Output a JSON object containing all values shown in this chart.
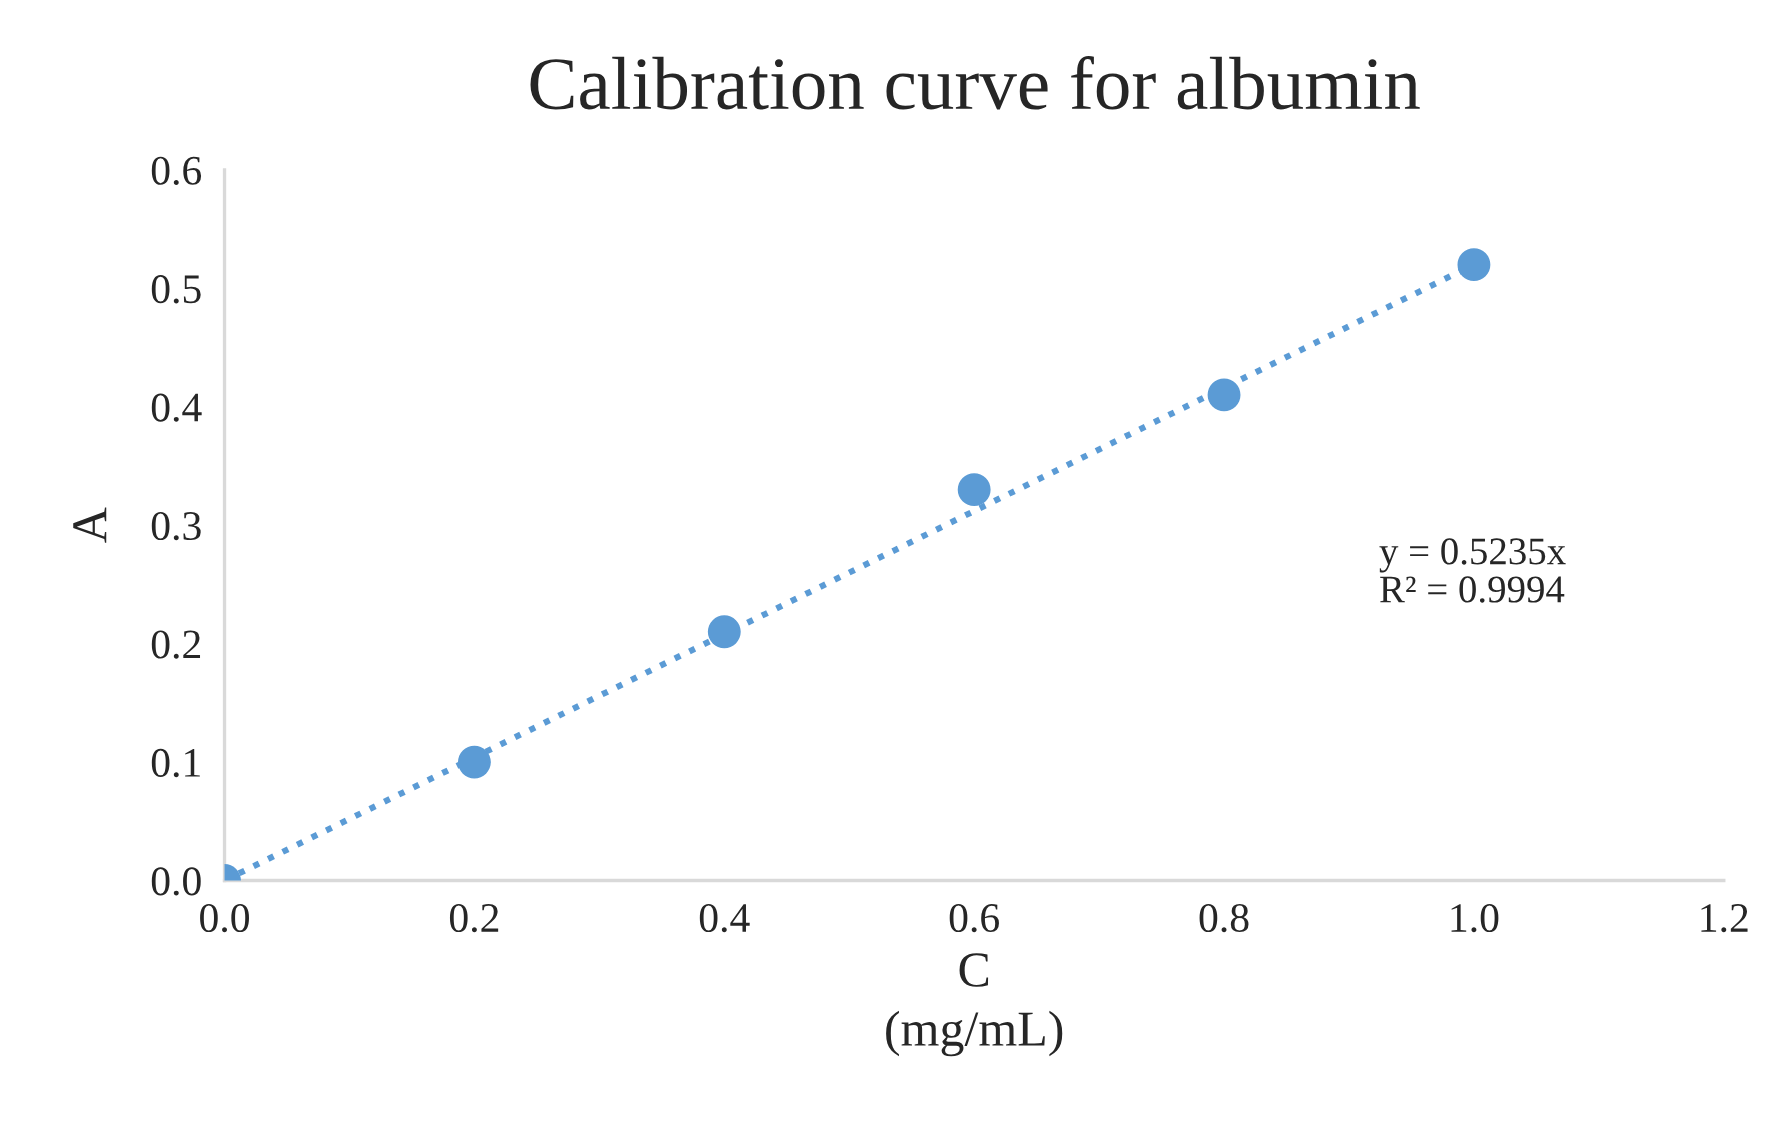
{
  "chart_data": {
    "type": "scatter",
    "title": "Calibration curve for albumin",
    "xlabel": "C\n(mg/mL)",
    "ylabel": "A",
    "x": [
      0.0,
      0.2,
      0.4,
      0.6,
      0.8,
      1.0
    ],
    "series": [
      {
        "color": "#5b9bd5",
        "values": [
          0.0,
          0.1,
          0.21,
          0.33,
          0.41,
          0.52
        ],
        "marker": "circle"
      },
      {
        "type": "line",
        "color": "#5b9bd5",
        "x": [
          0.0,
          1.0
        ],
        "values": [
          0.0,
          0.52
        ],
        "line_style": "dotted",
        "marker": "none"
      }
    ],
    "xlim": [
      0.0,
      1.2
    ],
    "xticks": [
      {
        "value": 0.0,
        "label": "0.0"
      },
      {
        "value": 0.2,
        "label": "0.2"
      },
      {
        "value": 0.4,
        "label": "0.4"
      },
      {
        "value": 0.6,
        "label": "0.6"
      },
      {
        "value": 0.8,
        "label": "0.8"
      },
      {
        "value": 1.0,
        "label": "1.0"
      },
      {
        "value": 1.2,
        "label": "1.2"
      }
    ],
    "ylim": [
      0.0,
      0.6
    ],
    "yticks": [
      {
        "value": 0.0,
        "label": "0.0"
      },
      {
        "value": 0.1,
        "label": "0.1"
      },
      {
        "value": 0.2,
        "label": "0.2"
      },
      {
        "value": 0.3,
        "label": "0.3"
      },
      {
        "value": 0.4,
        "label": "0.4"
      },
      {
        "value": 0.5,
        "label": "0.5"
      },
      {
        "value": 0.6,
        "label": "0.6"
      }
    ],
    "annotations": [
      "y = 0.5235x\nR² = 0.9994"
    ],
    "grid": false,
    "legend": false
  }
}
